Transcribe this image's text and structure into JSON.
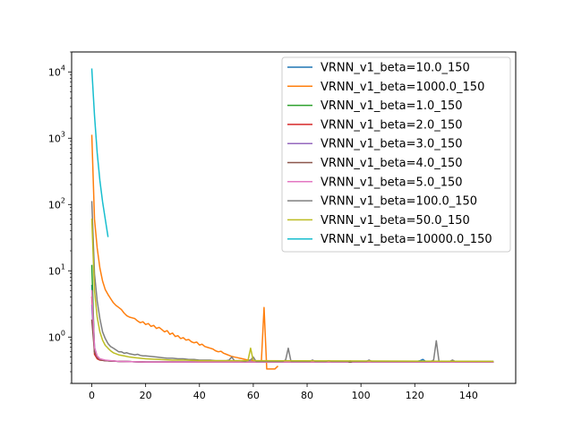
{
  "chart_data": {
    "type": "line",
    "title": "",
    "xlabel": "",
    "ylabel": "",
    "yscale": "log",
    "xlim": [
      -7.5,
      157.5
    ],
    "ylim": [
      0.2,
      20000
    ],
    "grid": false,
    "legend_position": "upper right",
    "x_ticks": [
      0,
      20,
      40,
      60,
      80,
      100,
      120,
      140
    ],
    "x_tick_labels": [
      "0",
      "20",
      "40",
      "60",
      "80",
      "100",
      "120",
      "140"
    ],
    "y_ticks": [
      1,
      10,
      100,
      1000,
      10000
    ],
    "y_tick_labels": [
      {
        "base": "10",
        "exp": "0"
      },
      {
        "base": "10",
        "exp": "1"
      },
      {
        "base": "10",
        "exp": "2"
      },
      {
        "base": "10",
        "exp": "3"
      },
      {
        "base": "10",
        "exp": "4"
      }
    ],
    "series": [
      {
        "name": "VRNN_v1_beta=10.0_150",
        "color": "#1f77b4",
        "points": [
          [
            0,
            6
          ],
          [
            1,
            0.7
          ],
          [
            2,
            0.5
          ],
          [
            3,
            0.46
          ],
          [
            5,
            0.44
          ],
          [
            10,
            0.43
          ],
          [
            20,
            0.42
          ],
          [
            40,
            0.42
          ],
          [
            60,
            0.42
          ],
          [
            80,
            0.42
          ],
          [
            100,
            0.42
          ],
          [
            120,
            0.42
          ],
          [
            122,
            0.44
          ],
          [
            123,
            0.46
          ],
          [
            124,
            0.43
          ],
          [
            125,
            0.42
          ],
          [
            149,
            0.42
          ]
        ]
      },
      {
        "name": "VRNN_v1_beta=1000.0_150",
        "color": "#ff7f0e",
        "points": [
          [
            0,
            1100
          ],
          [
            1,
            60
          ],
          [
            2,
            22
          ],
          [
            3,
            11
          ],
          [
            4,
            7
          ],
          [
            5,
            5.2
          ],
          [
            6,
            4.4
          ],
          [
            7,
            3.8
          ],
          [
            8,
            3.3
          ],
          [
            9,
            3.0
          ],
          [
            10,
            2.8
          ],
          [
            11,
            2.6
          ],
          [
            12,
            2.3
          ],
          [
            13,
            2.1
          ],
          [
            14,
            2.0
          ],
          [
            15,
            1.95
          ],
          [
            16,
            1.9
          ],
          [
            17,
            1.75
          ],
          [
            18,
            1.65
          ],
          [
            19,
            1.7
          ],
          [
            20,
            1.55
          ],
          [
            21,
            1.6
          ],
          [
            22,
            1.45
          ],
          [
            23,
            1.5
          ],
          [
            24,
            1.35
          ],
          [
            25,
            1.4
          ],
          [
            26,
            1.3
          ],
          [
            27,
            1.2
          ],
          [
            28,
            1.25
          ],
          [
            29,
            1.1
          ],
          [
            30,
            1.15
          ],
          [
            31,
            1.02
          ],
          [
            32,
            1.05
          ],
          [
            33,
            0.95
          ],
          [
            34,
            0.98
          ],
          [
            35,
            0.9
          ],
          [
            36,
            0.92
          ],
          [
            37,
            0.85
          ],
          [
            38,
            0.82
          ],
          [
            39,
            0.84
          ],
          [
            40,
            0.76
          ],
          [
            41,
            0.78
          ],
          [
            42,
            0.72
          ],
          [
            43,
            0.7
          ],
          [
            44,
            0.68
          ],
          [
            45,
            0.66
          ],
          [
            46,
            0.62
          ],
          [
            47,
            0.6
          ],
          [
            48,
            0.61
          ],
          [
            49,
            0.57
          ],
          [
            50,
            0.55
          ],
          [
            51,
            0.53
          ],
          [
            52,
            0.51
          ],
          [
            53,
            0.5
          ],
          [
            54,
            0.49
          ],
          [
            55,
            0.48
          ],
          [
            56,
            0.47
          ],
          [
            57,
            0.46
          ],
          [
            58,
            0.45
          ],
          [
            59,
            0.45
          ],
          [
            60,
            0.44
          ],
          [
            61,
            0.43
          ],
          [
            62,
            0.43
          ],
          [
            63,
            0.43
          ],
          [
            64,
            2.8
          ],
          [
            65,
            0.33
          ],
          [
            66,
            0.33
          ],
          [
            67,
            0.33
          ],
          [
            68,
            0.33
          ],
          [
            69,
            0.36
          ]
        ]
      },
      {
        "name": "VRNN_v1_beta=1.0_150",
        "color": "#2ca02c",
        "points": [
          [
            0,
            12
          ],
          [
            1,
            0.6
          ],
          [
            2,
            0.48
          ],
          [
            3,
            0.45
          ],
          [
            5,
            0.44
          ],
          [
            10,
            0.43
          ],
          [
            20,
            0.42
          ],
          [
            50,
            0.42
          ],
          [
            80,
            0.42
          ],
          [
            110,
            0.42
          ],
          [
            149,
            0.42
          ]
        ]
      },
      {
        "name": "VRNN_v1_beta=2.0_150",
        "color": "#d62728",
        "points": [
          [
            0,
            4
          ],
          [
            1,
            0.55
          ],
          [
            2,
            0.47
          ],
          [
            3,
            0.45
          ],
          [
            5,
            0.44
          ],
          [
            10,
            0.43
          ],
          [
            20,
            0.42
          ],
          [
            50,
            0.42
          ],
          [
            80,
            0.42
          ],
          [
            110,
            0.42
          ],
          [
            149,
            0.42
          ]
        ]
      },
      {
        "name": "VRNN_v1_beta=3.0_150",
        "color": "#9467bd",
        "points": [
          [
            0,
            3
          ],
          [
            1,
            0.6
          ],
          [
            2,
            0.5
          ],
          [
            3,
            0.46
          ],
          [
            5,
            0.44
          ],
          [
            10,
            0.43
          ],
          [
            20,
            0.42
          ],
          [
            50,
            0.42
          ],
          [
            80,
            0.42
          ],
          [
            110,
            0.42
          ],
          [
            149,
            0.42
          ]
        ]
      },
      {
        "name": "VRNN_v1_beta=4.0_150",
        "color": "#8c564b",
        "points": [
          [
            0,
            1.8
          ],
          [
            1,
            0.6
          ],
          [
            2,
            0.5
          ],
          [
            3,
            0.46
          ],
          [
            5,
            0.44
          ],
          [
            10,
            0.43
          ],
          [
            20,
            0.42
          ],
          [
            50,
            0.42
          ],
          [
            80,
            0.42
          ],
          [
            110,
            0.42
          ],
          [
            149,
            0.42
          ]
        ]
      },
      {
        "name": "VRNN_v1_beta=5.0_150",
        "color": "#e377c2",
        "points": [
          [
            0,
            5
          ],
          [
            1,
            0.7
          ],
          [
            2,
            0.52
          ],
          [
            3,
            0.47
          ],
          [
            5,
            0.45
          ],
          [
            10,
            0.43
          ],
          [
            20,
            0.42
          ],
          [
            50,
            0.42
          ],
          [
            80,
            0.42
          ],
          [
            95,
            0.42
          ],
          [
            96,
            0.44
          ],
          [
            97,
            0.42
          ],
          [
            110,
            0.42
          ],
          [
            149,
            0.42
          ]
        ]
      },
      {
        "name": "VRNN_v1_beta=100.0_150",
        "color": "#7f7f7f",
        "points": [
          [
            0,
            110
          ],
          [
            1,
            9
          ],
          [
            2,
            3.5
          ],
          [
            3,
            1.9
          ],
          [
            4,
            1.2
          ],
          [
            5,
            0.95
          ],
          [
            6,
            0.8
          ],
          [
            7,
            0.72
          ],
          [
            8,
            0.68
          ],
          [
            9,
            0.64
          ],
          [
            10,
            0.6
          ],
          [
            11,
            0.6
          ],
          [
            12,
            0.57
          ],
          [
            13,
            0.58
          ],
          [
            14,
            0.56
          ],
          [
            15,
            0.55
          ],
          [
            16,
            0.54
          ],
          [
            17,
            0.55
          ],
          [
            18,
            0.53
          ],
          [
            19,
            0.52
          ],
          [
            20,
            0.52
          ],
          [
            22,
            0.51
          ],
          [
            24,
            0.5
          ],
          [
            26,
            0.49
          ],
          [
            28,
            0.48
          ],
          [
            30,
            0.48
          ],
          [
            32,
            0.47
          ],
          [
            34,
            0.47
          ],
          [
            36,
            0.46
          ],
          [
            38,
            0.46
          ],
          [
            40,
            0.45
          ],
          [
            42,
            0.45
          ],
          [
            44,
            0.45
          ],
          [
            46,
            0.44
          ],
          [
            48,
            0.44
          ],
          [
            50,
            0.44
          ],
          [
            51,
            0.45
          ],
          [
            52,
            0.5
          ],
          [
            53,
            0.44
          ],
          [
            55,
            0.44
          ],
          [
            57,
            0.43
          ],
          [
            59,
            0.45
          ],
          [
            60,
            0.5
          ],
          [
            61,
            0.43
          ],
          [
            63,
            0.43
          ],
          [
            65,
            0.43
          ],
          [
            67,
            0.43
          ],
          [
            69,
            0.43
          ],
          [
            71,
            0.43
          ],
          [
            72,
            0.45
          ],
          [
            73,
            0.68
          ],
          [
            74,
            0.43
          ],
          [
            76,
            0.43
          ],
          [
            78,
            0.43
          ],
          [
            80,
            0.43
          ],
          [
            81,
            0.43
          ],
          [
            82,
            0.45
          ],
          [
            83,
            0.43
          ],
          [
            87,
            0.43
          ],
          [
            88,
            0.44
          ],
          [
            89,
            0.43
          ],
          [
            94,
            0.43
          ],
          [
            96,
            0.43
          ],
          [
            98,
            0.43
          ],
          [
            100,
            0.43
          ],
          [
            102,
            0.43
          ],
          [
            103,
            0.45
          ],
          [
            104,
            0.43
          ],
          [
            110,
            0.43
          ],
          [
            114,
            0.43
          ],
          [
            116,
            0.43
          ],
          [
            118,
            0.43
          ],
          [
            120,
            0.43
          ],
          [
            124,
            0.43
          ],
          [
            126,
            0.43
          ],
          [
            127,
            0.45
          ],
          [
            128,
            0.88
          ],
          [
            129,
            0.43
          ],
          [
            131,
            0.43
          ],
          [
            133,
            0.43
          ],
          [
            134,
            0.45
          ],
          [
            135,
            0.43
          ],
          [
            140,
            0.43
          ],
          [
            145,
            0.43
          ],
          [
            149,
            0.43
          ]
        ]
      },
      {
        "name": "VRNN_v1_beta=50.0_150",
        "color": "#bcbd22",
        "points": [
          [
            0,
            60
          ],
          [
            1,
            5
          ],
          [
            2,
            2
          ],
          [
            3,
            1.2
          ],
          [
            4,
            0.9
          ],
          [
            5,
            0.75
          ],
          [
            6,
            0.68
          ],
          [
            7,
            0.62
          ],
          [
            8,
            0.58
          ],
          [
            9,
            0.56
          ],
          [
            10,
            0.54
          ],
          [
            12,
            0.52
          ],
          [
            14,
            0.5
          ],
          [
            16,
            0.49
          ],
          [
            18,
            0.48
          ],
          [
            20,
            0.47
          ],
          [
            25,
            0.46
          ],
          [
            30,
            0.45
          ],
          [
            35,
            0.45
          ],
          [
            40,
            0.44
          ],
          [
            45,
            0.44
          ],
          [
            50,
            0.44
          ],
          [
            55,
            0.44
          ],
          [
            58,
            0.44
          ],
          [
            59,
            0.68
          ],
          [
            60,
            0.44
          ],
          [
            62,
            0.44
          ],
          [
            149,
            0.43
          ]
        ]
      },
      {
        "name": "VRNN_v1_beta=10000.0_150",
        "color": "#17becf",
        "points": [
          [
            0,
            11000
          ],
          [
            1,
            2200
          ],
          [
            2,
            600
          ],
          [
            3,
            230
          ],
          [
            4,
            110
          ],
          [
            5,
            60
          ],
          [
            6,
            33
          ]
        ]
      }
    ]
  }
}
